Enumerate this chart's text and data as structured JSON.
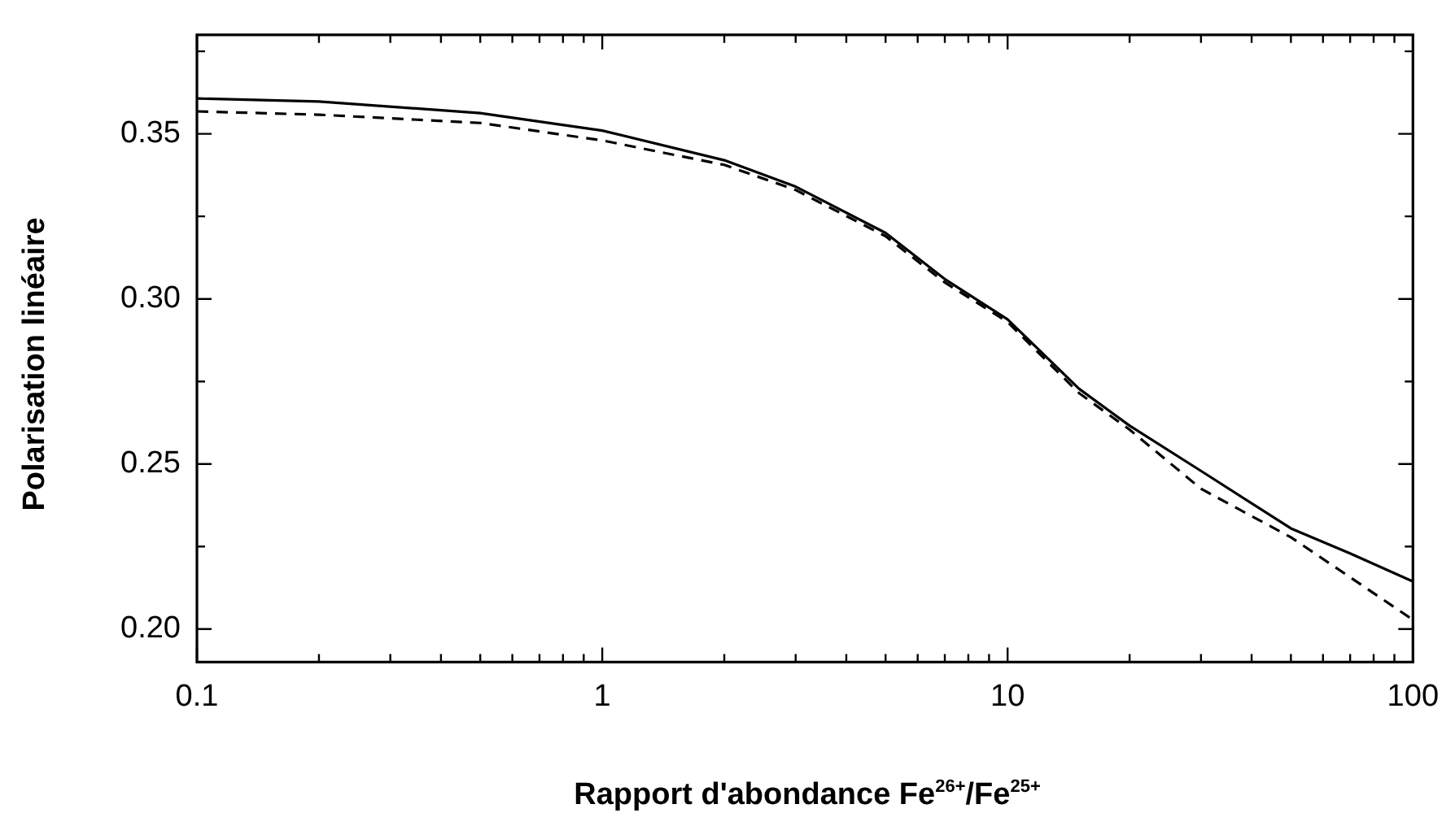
{
  "chart_data": {
    "type": "line",
    "xlabel": "Rapport d'abondance Fe$^{26+}$/Fe$^{25+}$",
    "ylabel": "Polarisation linéaire",
    "log": "x",
    "xlim": [
      0.1,
      100
    ],
    "xticks": [
      0.1,
      1,
      10,
      100
    ],
    "ylim": [
      0.19,
      0.38
    ],
    "yticks": [
      {
        "value": 0.2,
        "label": "0.20"
      },
      0.25,
      {
        "value": 0.3,
        "label": "0.30"
      },
      0.35
    ],
    "grid": false,
    "legend": false,
    "marker": "none",
    "series": [
      {
        "color": "#000000",
        "line_style": "solid",
        "x": [
          0.1,
          0.2,
          0.5,
          1,
          2,
          3,
          5,
          7,
          10,
          15,
          20,
          30,
          50,
          70,
          100
        ],
        "values": [
          0.3607,
          0.3598,
          0.3563,
          0.351,
          0.342,
          0.334,
          0.32,
          0.306,
          0.2938,
          0.2728,
          0.2616,
          0.2479,
          0.2305,
          0.2229,
          0.2144
        ]
      },
      {
        "color": "#000000",
        "line_style": "dashed",
        "x": [
          0.1,
          0.2,
          0.5,
          1,
          2,
          3,
          5,
          7,
          10,
          15,
          20,
          30,
          50,
          70,
          100
        ],
        "values": [
          0.3568,
          0.3558,
          0.3533,
          0.348,
          0.3406,
          0.333,
          0.319,
          0.305,
          0.293,
          0.2715,
          0.2604,
          0.2425,
          0.2278,
          0.2157,
          0.2028
        ]
      }
    ]
  }
}
